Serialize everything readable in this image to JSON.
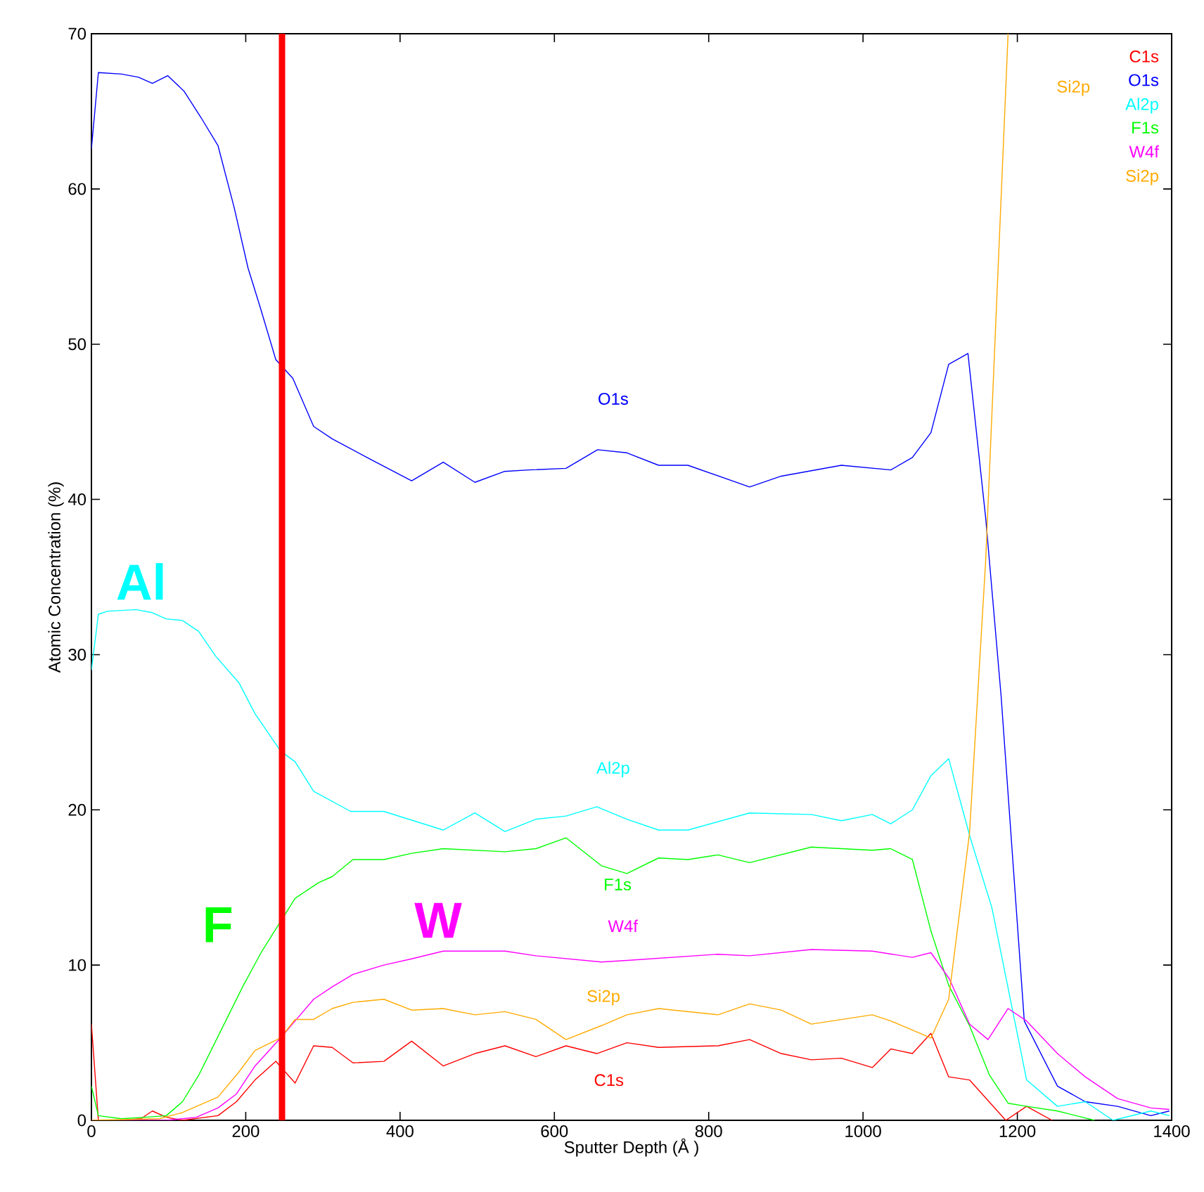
{
  "chart_data": {
    "type": "line",
    "xlabel": "Sputter Depth (Å )",
    "ylabel": "Atomic Concentration (%)",
    "xlim": [
      0,
      1400
    ],
    "ylim": [
      0,
      70
    ],
    "xticks": [
      0,
      200,
      400,
      600,
      800,
      1000,
      1200,
      1400
    ],
    "yticks": [
      0,
      10,
      20,
      30,
      40,
      50,
      60,
      70
    ],
    "grid": false,
    "legend": "top right",
    "marker": "none",
    "line_style": "solid",
    "series": [
      {
        "name": "C1s",
        "color": "#ff0000",
        "x": [
          0,
          9,
          39,
          64,
          79,
          97,
          118,
          164,
          188,
          212,
          239,
          264,
          288,
          312,
          339,
          379,
          415,
          456,
          497,
          536,
          576,
          615,
          655,
          694,
          735,
          812,
          853,
          894,
          933,
          972,
          1012,
          1036,
          1064,
          1088,
          1111,
          1138,
          1185,
          1212,
          1245
        ],
        "values": [
          6.2,
          0,
          0,
          0.1,
          0.6,
          0.2,
          0,
          0.3,
          1.2,
          2.6,
          3.8,
          2.4,
          4.8,
          4.7,
          3.7,
          3.8,
          5.1,
          3.5,
          4.3,
          4.8,
          4.1,
          4.8,
          4.3,
          5.0,
          4.7,
          4.8,
          5.2,
          4.3,
          3.9,
          4.0,
          3.4,
          4.6,
          4.3,
          5.6,
          2.8,
          2.6,
          0,
          0.9,
          0
        ]
      },
      {
        "name": "O1s",
        "color": "#0000ff",
        "x": [
          0,
          9,
          39,
          61,
          79,
          99,
          120,
          142,
          164,
          185,
          203,
          218,
          239,
          261,
          288,
          312,
          361,
          415,
          456,
          497,
          535,
          567,
          615,
          656,
          694,
          735,
          773,
          853,
          894,
          972,
          1036,
          1064,
          1088,
          1111,
          1136,
          1159,
          1179,
          1209,
          1252,
          1288,
          1330,
          1373,
          1397
        ],
        "values": [
          62.6,
          67.5,
          67.4,
          67.2,
          66.8,
          67.3,
          66.3,
          64.6,
          62.8,
          58.8,
          54.9,
          52.5,
          49.0,
          47.8,
          44.7,
          43.9,
          42.6,
          41.2,
          42.4,
          41.1,
          41.8,
          41.9,
          42.0,
          43.2,
          43.0,
          42.2,
          42.2,
          40.8,
          41.5,
          42.2,
          41.9,
          42.7,
          44.3,
          48.7,
          49.4,
          38.8,
          27.3,
          6.4,
          2.2,
          1.2,
          0.9,
          0.3,
          0.6
        ]
      },
      {
        "name": "Al2p",
        "color": "#00ffff",
        "x": [
          0,
          9,
          21,
          58,
          79,
          97,
          118,
          139,
          161,
          191,
          212,
          245,
          264,
          288,
          336,
          379,
          456,
          497,
          536,
          576,
          615,
          655,
          694,
          735,
          773,
          853,
          933,
          972,
          1012,
          1036,
          1064,
          1088,
          1111,
          1139,
          1167,
          1212,
          1252,
          1288,
          1324,
          1373,
          1397
        ],
        "values": [
          29.0,
          32.6,
          32.8,
          32.9,
          32.7,
          32.3,
          32.2,
          31.5,
          29.9,
          28.2,
          26.2,
          23.8,
          23.1,
          21.2,
          19.9,
          19.9,
          18.7,
          19.8,
          18.6,
          19.4,
          19.6,
          20.2,
          19.4,
          18.7,
          18.7,
          19.8,
          19.7,
          19.3,
          19.7,
          19.1,
          20.0,
          22.2,
          23.3,
          18.2,
          13.7,
          2.6,
          0.9,
          1.2,
          0,
          0.6,
          0.3
        ]
      },
      {
        "name": "F1s",
        "color": "#00ff00",
        "x": [
          0,
          9,
          39,
          70,
          97,
          118,
          139,
          197,
          221,
          245,
          264,
          294,
          312,
          339,
          379,
          415,
          456,
          536,
          576,
          615,
          661,
          694,
          735,
          773,
          812,
          853,
          933,
          1012,
          1036,
          1064,
          1088,
          1111,
          1138,
          1164,
          1188,
          1212,
          1252,
          1300
        ],
        "values": [
          2.2,
          0.3,
          0.1,
          0.2,
          0.3,
          1.2,
          2.9,
          8.7,
          10.9,
          12.8,
          14.3,
          15.3,
          15.7,
          16.8,
          16.8,
          17.2,
          17.5,
          17.3,
          17.5,
          18.2,
          16.4,
          15.9,
          16.9,
          16.8,
          17.1,
          16.6,
          17.6,
          17.4,
          17.5,
          16.8,
          12.2,
          8.7,
          6.1,
          2.9,
          1.1,
          0.9,
          0.6,
          0
        ]
      },
      {
        "name": "W4f",
        "color": "#ff00ff",
        "x": [
          0,
          97,
          136,
          164,
          188,
          212,
          245,
          264,
          288,
          312,
          339,
          379,
          415,
          456,
          536,
          576,
          661,
          694,
          812,
          853,
          933,
          1012,
          1064,
          1088,
          1112,
          1138,
          1162,
          1188,
          1212,
          1252,
          1288,
          1330,
          1373,
          1397
        ],
        "values": [
          0,
          0,
          0.2,
          0.8,
          1.7,
          3.5,
          5.3,
          6.4,
          7.8,
          8.6,
          9.4,
          10.0,
          10.4,
          10.9,
          10.9,
          10.6,
          10.2,
          10.3,
          10.7,
          10.6,
          11.0,
          10.9,
          10.5,
          10.8,
          9.1,
          6.2,
          5.2,
          7.2,
          6.4,
          4.3,
          2.8,
          1.4,
          0.8,
          0.7
        ]
      },
      {
        "name": "Si2p",
        "color": "#ffaa00",
        "x": [
          0,
          88,
          118,
          164,
          191,
          212,
          245,
          264,
          288,
          312,
          339,
          379,
          415,
          456,
          497,
          536,
          576,
          615,
          661,
          694,
          735,
          812,
          853,
          894,
          933,
          1012,
          1036,
          1088,
          1111,
          1138,
          1159,
          1188
        ],
        "values": [
          0,
          0.1,
          0.5,
          1.5,
          3.1,
          4.5,
          5.3,
          6.5,
          6.5,
          7.2,
          7.6,
          7.8,
          7.1,
          7.2,
          6.8,
          7.0,
          6.5,
          5.2,
          6.1,
          6.8,
          7.2,
          6.8,
          7.5,
          7.1,
          6.2,
          6.8,
          6.4,
          5.3,
          7.8,
          18.5,
          36.1,
          70
        ]
      }
    ],
    "ref_lines": [
      {
        "axis": "x",
        "value": 247,
        "color": "#ff0000"
      }
    ],
    "annotations": [
      "O1s",
      "Al2p",
      "F1s",
      "W4f",
      "Si2p",
      "C1s",
      "Si2p",
      "Al",
      "F",
      "W"
    ]
  }
}
